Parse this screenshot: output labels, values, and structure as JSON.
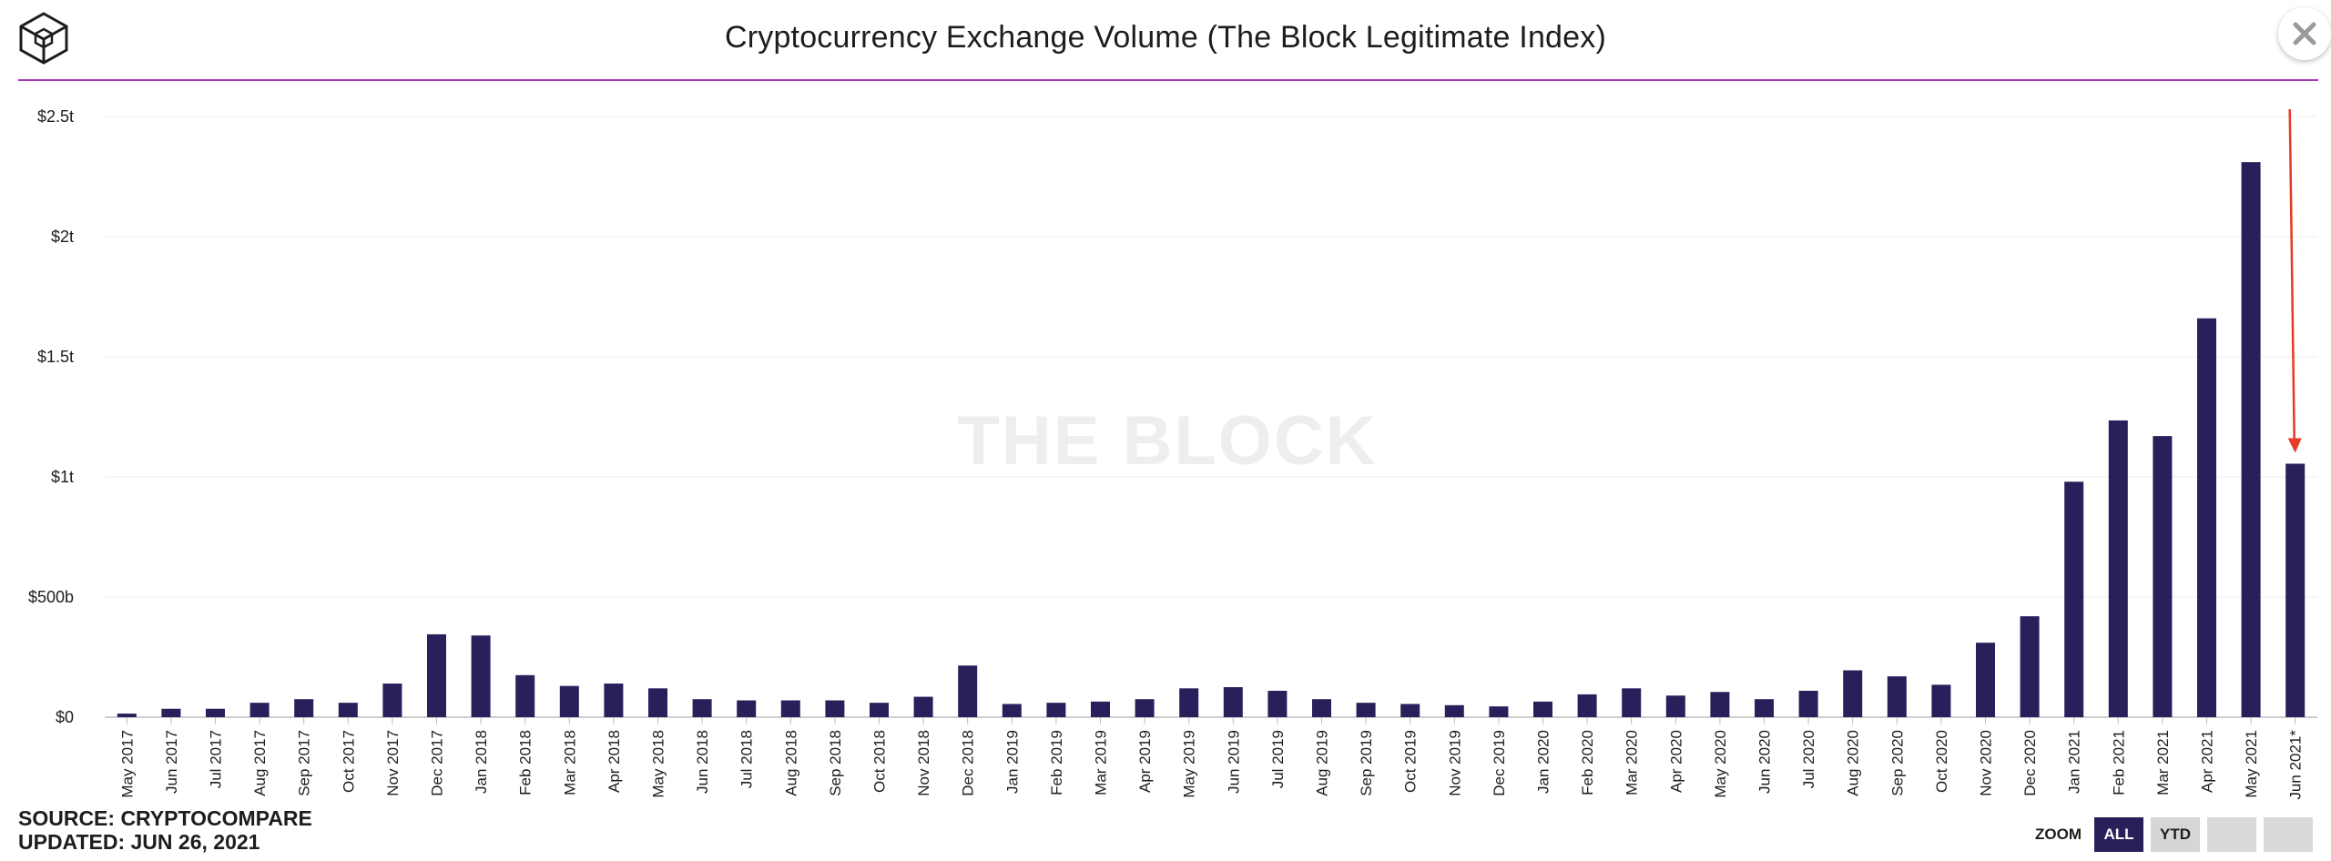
{
  "header": {
    "title": "Cryptocurrency Exchange Volume (The Block Legitimate Index)",
    "logo_icon": "cube-logo-icon",
    "close_icon": "close-icon"
  },
  "watermark": "THE BLOCK",
  "footer": {
    "source": "SOURCE: CRYPTOCOMPARE",
    "updated": "UPDATED: JUN 26, 2021"
  },
  "zoom": {
    "label": "ZOOM",
    "buttons": [
      {
        "label": "ALL",
        "active": true
      },
      {
        "label": "YTD",
        "active": false
      },
      {
        "label": "",
        "active": false
      },
      {
        "label": "",
        "active": false
      }
    ]
  },
  "colors": {
    "bar": "#2a1f5a",
    "accent_rule": "#a735b6",
    "arrow": "#e53a25",
    "grid": "#ececec"
  },
  "chart_data": {
    "type": "bar",
    "title": "Cryptocurrency Exchange Volume (The Block Legitimate Index)",
    "xlabel": "",
    "ylabel": "",
    "ylim": [
      0,
      2500000000000
    ],
    "yticks": [
      {
        "value": 0,
        "label": "$0"
      },
      {
        "value": 500000000000,
        "label": "$500b"
      },
      {
        "value": 1000000000000,
        "label": "$1t"
      },
      {
        "value": 1500000000000,
        "label": "$1.5t"
      },
      {
        "value": 2000000000000,
        "label": "$2t"
      },
      {
        "value": 2500000000000,
        "label": "$2.5t"
      }
    ],
    "grid": true,
    "legend": "none",
    "categories": [
      "May 2017",
      "Jun 2017",
      "Jul 2017",
      "Aug 2017",
      "Sep 2017",
      "Oct 2017",
      "Nov 2017",
      "Dec 2017",
      "Jan 2018",
      "Feb 2018",
      "Mar 2018",
      "Apr 2018",
      "May 2018",
      "Jun 2018",
      "Jul 2018",
      "Aug 2018",
      "Sep 2018",
      "Oct 2018",
      "Nov 2018",
      "Dec 2018",
      "Jan 2019",
      "Feb 2019",
      "Mar 2019",
      "Apr 2019",
      "May 2019",
      "Jun 2019",
      "Jul 2019",
      "Aug 2019",
      "Sep 2019",
      "Oct 2019",
      "Nov 2019",
      "Dec 2019",
      "Jan 2020",
      "Feb 2020",
      "Mar 2020",
      "Apr 2020",
      "May 2020",
      "Jun 2020",
      "Jul 2020",
      "Aug 2020",
      "Sep 2020",
      "Oct 2020",
      "Nov 2020",
      "Dec 2020",
      "Jan 2021",
      "Feb 2021",
      "Mar 2021",
      "Apr 2021",
      "May 2021",
      "Jun 2021*"
    ],
    "values": [
      15000000000,
      35000000000,
      35000000000,
      60000000000,
      75000000000,
      60000000000,
      140000000000,
      345000000000,
      340000000000,
      175000000000,
      130000000000,
      140000000000,
      120000000000,
      75000000000,
      70000000000,
      70000000000,
      70000000000,
      60000000000,
      85000000000,
      215000000000,
      55000000000,
      60000000000,
      65000000000,
      75000000000,
      120000000000,
      125000000000,
      110000000000,
      75000000000,
      60000000000,
      55000000000,
      50000000000,
      45000000000,
      65000000000,
      95000000000,
      120000000000,
      90000000000,
      105000000000,
      75000000000,
      110000000000,
      195000000000,
      170000000000,
      135000000000,
      310000000000,
      420000000000,
      980000000000,
      1235000000000,
      1170000000000,
      1660000000000,
      2310000000000,
      1055000000000
    ],
    "annotations": [
      {
        "type": "arrow",
        "target": "Jun 2021*",
        "description": "downward arrow pointing to Jun 2021* bar"
      }
    ]
  }
}
